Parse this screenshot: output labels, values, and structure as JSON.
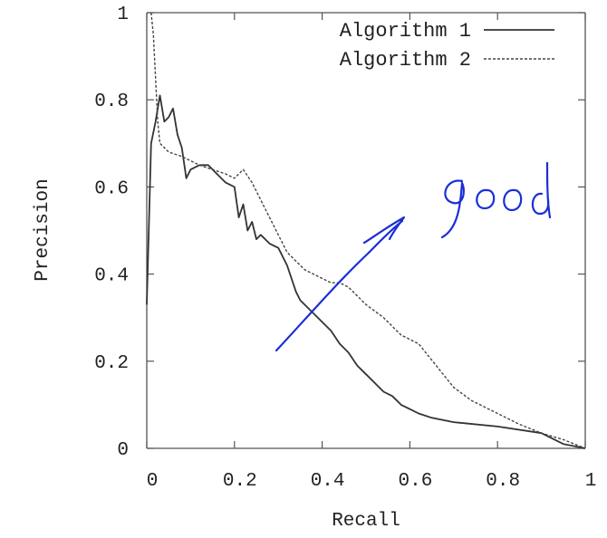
{
  "chart_data": {
    "type": "line",
    "xlabel": "Recall",
    "ylabel": "Precision",
    "xlim": [
      0,
      1
    ],
    "ylim": [
      0,
      1
    ],
    "xticks": [
      "0",
      "0.2",
      "0.4",
      "0.6",
      "0.8",
      "1"
    ],
    "yticks": [
      "0",
      "0.2",
      "0.4",
      "0.6",
      "0.8",
      "1"
    ],
    "grid": false,
    "legend_position": "top-right",
    "series": [
      {
        "name": "Algorithm 1",
        "style": "solid",
        "color": "#333333",
        "x": [
          0,
          0.01,
          0.02,
          0.03,
          0.04,
          0.05,
          0.06,
          0.07,
          0.08,
          0.09,
          0.1,
          0.12,
          0.14,
          0.16,
          0.18,
          0.2,
          0.21,
          0.22,
          0.23,
          0.24,
          0.25,
          0.26,
          0.28,
          0.3,
          0.32,
          0.34,
          0.35,
          0.37,
          0.4,
          0.42,
          0.44,
          0.46,
          0.48,
          0.5,
          0.52,
          0.54,
          0.56,
          0.58,
          0.6,
          0.62,
          0.65,
          0.7,
          0.8,
          0.9,
          0.95,
          1.0
        ],
        "y": [
          0.33,
          0.7,
          0.75,
          0.81,
          0.75,
          0.76,
          0.78,
          0.72,
          0.69,
          0.62,
          0.64,
          0.65,
          0.65,
          0.63,
          0.61,
          0.6,
          0.53,
          0.56,
          0.5,
          0.52,
          0.48,
          0.49,
          0.47,
          0.46,
          0.42,
          0.36,
          0.34,
          0.32,
          0.29,
          0.27,
          0.24,
          0.22,
          0.19,
          0.17,
          0.15,
          0.13,
          0.12,
          0.1,
          0.09,
          0.08,
          0.07,
          0.06,
          0.05,
          0.035,
          0.01,
          0.0
        ]
      },
      {
        "name": "Algorithm 2",
        "style": "dashed",
        "color": "#444444",
        "x": [
          0.01,
          0.015,
          0.02,
          0.025,
          0.03,
          0.05,
          0.08,
          0.1,
          0.12,
          0.15,
          0.18,
          0.2,
          0.22,
          0.24,
          0.26,
          0.28,
          0.3,
          0.32,
          0.34,
          0.36,
          0.38,
          0.4,
          0.42,
          0.44,
          0.46,
          0.48,
          0.5,
          0.54,
          0.58,
          0.62,
          0.66,
          0.7,
          0.74,
          0.8,
          0.85,
          0.9,
          0.95,
          1.0
        ],
        "y": [
          1.0,
          0.95,
          0.85,
          0.75,
          0.7,
          0.68,
          0.67,
          0.66,
          0.65,
          0.64,
          0.63,
          0.62,
          0.64,
          0.61,
          0.57,
          0.53,
          0.49,
          0.45,
          0.43,
          0.41,
          0.4,
          0.39,
          0.38,
          0.38,
          0.37,
          0.35,
          0.33,
          0.3,
          0.26,
          0.24,
          0.19,
          0.14,
          0.11,
          0.08,
          0.055,
          0.035,
          0.02,
          0.0
        ]
      }
    ],
    "annotations": [
      {
        "type": "handwritten-text",
        "text": "good",
        "color": "#1a2fd6"
      },
      {
        "type": "handwritten-arrow",
        "color": "#1a2fd6",
        "direction": "toward upper-right"
      }
    ]
  }
}
